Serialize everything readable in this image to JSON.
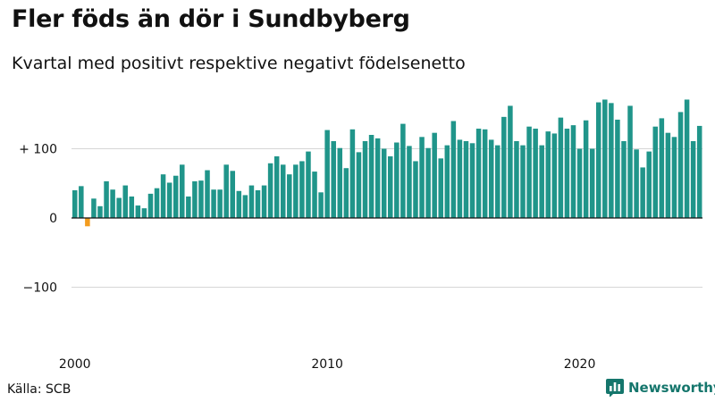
{
  "title": "Fler föds än dör i Sundbyberg",
  "subtitle": "Kvartal med positivt respektive negativt födelsenetto",
  "source": "Källa: SCB",
  "brand": {
    "name": "Newsworthy",
    "icon": "newsworthy-logo-icon"
  },
  "colors": {
    "positive": "#20958a",
    "negative": "#f39c1e",
    "brand": "#15766c"
  },
  "chart_data": {
    "type": "bar",
    "ylim": [
      -150,
      175
    ],
    "yticks": [
      {
        "value": 100,
        "label": "+ 100"
      },
      {
        "value": 0,
        "label": "0"
      },
      {
        "value": -100,
        "label": "−100"
      }
    ],
    "xticks": [
      {
        "index": 0,
        "label": "2000"
      },
      {
        "index": 40,
        "label": "2010"
      },
      {
        "index": 80,
        "label": "2020"
      }
    ],
    "grid": true,
    "legend": "none",
    "start": "2000 Q1",
    "frequency": "quarterly",
    "values": [
      40,
      46,
      -12,
      28,
      17,
      53,
      41,
      29,
      47,
      31,
      18,
      14,
      35,
      43,
      63,
      51,
      61,
      77,
      31,
      53,
      54,
      69,
      41,
      41,
      77,
      68,
      39,
      33,
      47,
      40,
      47,
      79,
      89,
      77,
      63,
      77,
      82,
      96,
      67,
      37,
      127,
      111,
      101,
      72,
      128,
      95,
      111,
      120,
      115,
      100,
      89,
      109,
      136,
      104,
      82,
      117,
      101,
      123,
      86,
      105,
      140,
      113,
      111,
      108,
      129,
      128,
      113,
      105,
      146,
      162,
      111,
      105,
      132,
      129,
      105,
      125,
      122,
      145,
      129,
      134,
      100,
      141,
      100,
      167,
      171,
      166,
      142,
      111,
      162,
      99,
      73,
      96,
      132,
      144,
      123,
      117,
      153,
      171,
      111,
      133
    ]
  }
}
